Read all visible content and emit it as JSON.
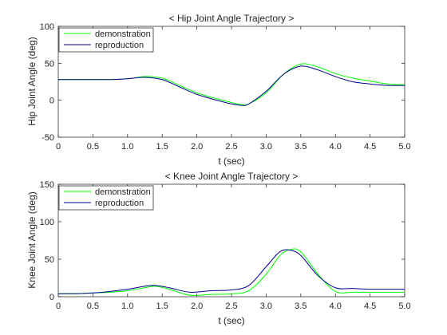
{
  "chart_data": [
    {
      "type": "line",
      "title": "< Hip Joint Angle Trajectory >",
      "xlabel": "t (sec)",
      "ylabel": "Hip Joint Angle (deg)",
      "xlim": [
        0,
        5
      ],
      "ylim": [
        -50,
        100
      ],
      "xticks": [
        "0",
        "0.5",
        "1.0",
        "1.5",
        "2.0",
        "2.5",
        "3.0",
        "3.5",
        "4.0",
        "4.5",
        "5.0"
      ],
      "yticks": [
        "-50",
        "0",
        "50",
        "100"
      ],
      "grid": false,
      "legend": "top-left",
      "x": [
        0,
        0.25,
        0.5,
        0.75,
        1.0,
        1.25,
        1.5,
        1.75,
        2.0,
        2.25,
        2.5,
        2.65,
        2.75,
        3.0,
        3.25,
        3.5,
        3.75,
        4.0,
        4.25,
        4.5,
        4.75,
        5.0
      ],
      "series": [
        {
          "name": "demonstration",
          "color": "#00ff00",
          "values": [
            28,
            28,
            28,
            28,
            29,
            32,
            30,
            20,
            10,
            3,
            -3,
            -6,
            -5,
            10,
            35,
            49,
            45,
            36,
            30,
            26,
            22,
            21
          ]
        },
        {
          "name": "reproduction",
          "color": "#00008b",
          "values": [
            28,
            28,
            28,
            28,
            29,
            31,
            28,
            18,
            8,
            1,
            -5,
            -7,
            -5,
            12,
            35,
            46,
            41,
            32,
            25,
            22,
            20,
            20
          ]
        }
      ]
    },
    {
      "type": "line",
      "title": "< Knee Joint Angle Trajectory >",
      "xlabel": "t (sec)",
      "ylabel": "Knee Joint Angle (deg)",
      "xlim": [
        0,
        5
      ],
      "ylim": [
        0,
        150
      ],
      "xticks": [
        "0",
        "0.5",
        "1.0",
        "1.5",
        "2.0",
        "2.5",
        "3.0",
        "3.5",
        "4.0",
        "4.5",
        "5.0"
      ],
      "yticks": [
        "0",
        "50",
        "100",
        "150"
      ],
      "grid": false,
      "legend": "top-left",
      "x": [
        0,
        0.25,
        0.5,
        0.75,
        1.0,
        1.25,
        1.4,
        1.6,
        1.9,
        2.2,
        2.5,
        2.75,
        3.0,
        3.2,
        3.35,
        3.5,
        3.75,
        4.0,
        4.25,
        4.5,
        4.75,
        5.0
      ],
      "series": [
        {
          "name": "demonstration",
          "color": "#00ff00",
          "values": [
            4,
            4,
            5,
            6,
            8,
            12,
            14,
            10,
            2,
            3,
            4,
            8,
            30,
            55,
            63,
            60,
            30,
            7,
            6,
            6,
            6,
            6
          ]
        },
        {
          "name": "reproduction",
          "color": "#00008b",
          "values": [
            4,
            4,
            5,
            7,
            10,
            14,
            15,
            12,
            6,
            8,
            9,
            15,
            40,
            60,
            62,
            55,
            28,
            12,
            11,
            10,
            10,
            10
          ]
        }
      ]
    }
  ]
}
